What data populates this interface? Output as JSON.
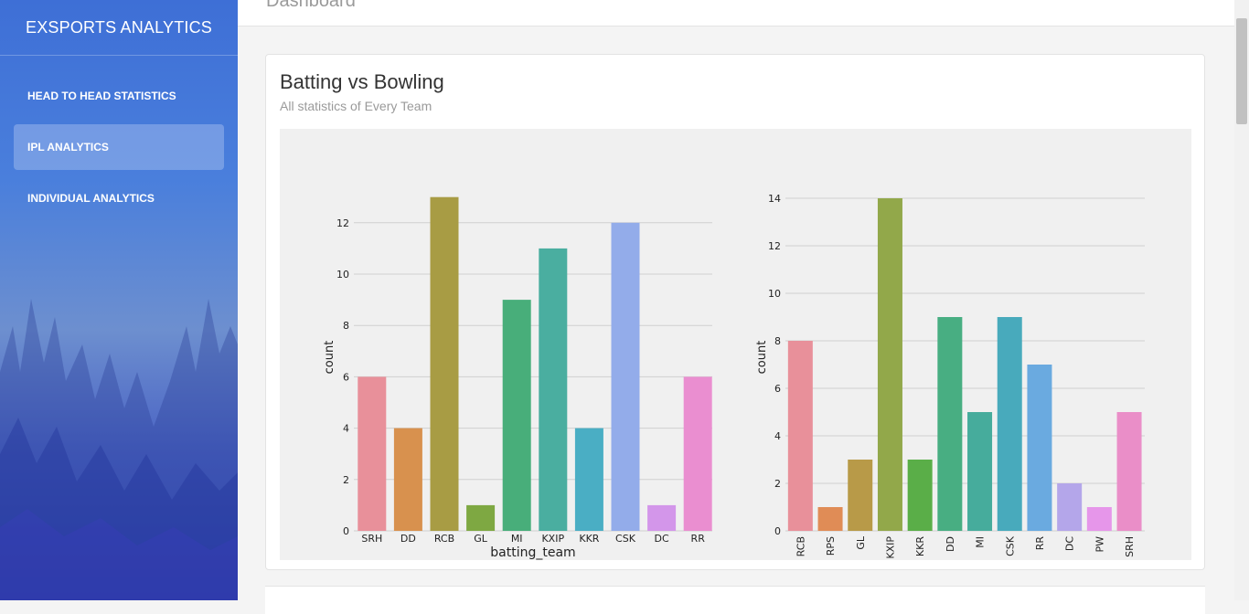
{
  "app": {
    "brand": "EXSPORTS ANALYTICS",
    "page_title": "Dashboard"
  },
  "sidebar": {
    "items": [
      {
        "label": "HEAD TO HEAD STATISTICS",
        "active": false
      },
      {
        "label": "IPL ANALYTICS",
        "active": true
      },
      {
        "label": "INDIVIDUAL ANALYTICS",
        "active": false
      }
    ]
  },
  "card": {
    "title": "Batting vs Bowling",
    "subtitle": "All statistics of Every Team"
  },
  "chart_data": [
    {
      "type": "bar",
      "categories": [
        "SRH",
        "DD",
        "RCB",
        "GL",
        "MI",
        "KXIP",
        "KKR",
        "CSK",
        "DC",
        "RR"
      ],
      "values": [
        6,
        4,
        13,
        1,
        9,
        11,
        4,
        12,
        1,
        6
      ],
      "colors": [
        "#e8909a",
        "#d8914e",
        "#a89c44",
        "#7ea842",
        "#48ae7a",
        "#4aaea0",
        "#4aaec4",
        "#93acea",
        "#d396ea",
        "#ea8ed0"
      ],
      "xlabel": "batting_team",
      "ylabel": "count",
      "yticks": [
        0,
        2,
        4,
        6,
        8,
        10,
        12
      ],
      "ylim": [
        0,
        13.6
      ],
      "grid": true,
      "xtick_rotation": 0
    },
    {
      "type": "bar",
      "categories": [
        "RCB",
        "RPS",
        "GL",
        "KXIP",
        "KKR",
        "DD",
        "MI",
        "CSK",
        "RR",
        "DC",
        "PW",
        "SRH"
      ],
      "values": [
        8,
        1,
        3,
        14,
        3,
        9,
        5,
        9,
        7,
        2,
        1,
        5
      ],
      "colors": [
        "#e8909a",
        "#e08c56",
        "#b89a48",
        "#92a84a",
        "#5aae48",
        "#48ae82",
        "#46ac9c",
        "#48aabc",
        "#6aaae0",
        "#b4a6ea",
        "#e696ea",
        "#ea8ec8"
      ],
      "xlabel": "",
      "ylabel": "count",
      "yticks": [
        0,
        2,
        4,
        6,
        8,
        10,
        12,
        14
      ],
      "ylim": [
        0,
        14
      ],
      "grid": true,
      "xtick_rotation": -90
    }
  ]
}
